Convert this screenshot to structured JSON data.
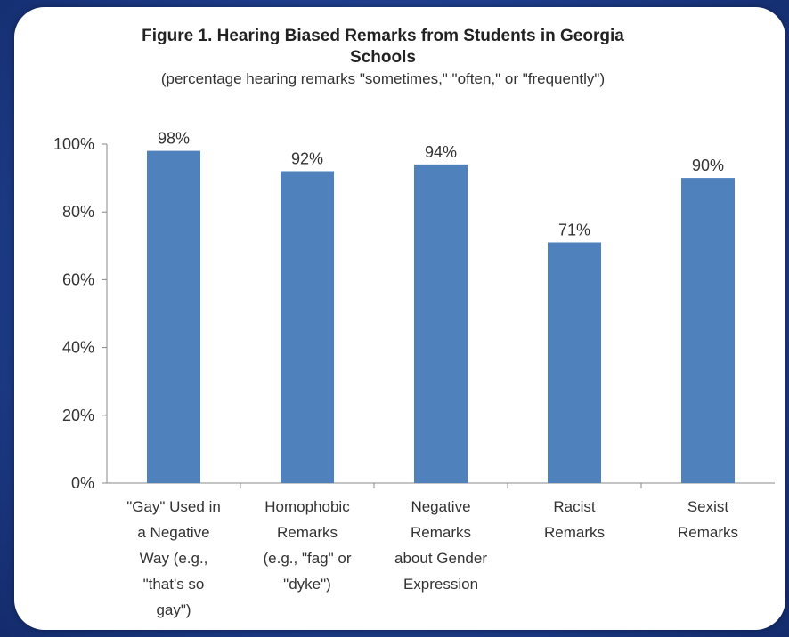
{
  "chart_data": {
    "type": "bar",
    "title": "Figure 1. Hearing Biased Remarks from Students in Georgia Schools",
    "subtitle": "(percentage hearing remarks \"sometimes,\" \"often,\" or \"frequently\")",
    "categories": [
      "\"Gay\" Used in a Negative Way (e.g., \"that's so gay\")",
      "Homophobic Remarks (e.g., \"fag\" or \"dyke\")",
      "Negative Remarks about Gender Expression",
      "Racist Remarks",
      "Sexist Remarks"
    ],
    "category_lines": [
      [
        "\"Gay\" Used in",
        "a Negative",
        "Way (e.g.,",
        "\"that's so",
        "gay\")"
      ],
      [
        "Homophobic",
        "Remarks",
        "(e.g., \"fag\" or",
        "\"dyke\")"
      ],
      [
        "Negative",
        "Remarks",
        "about Gender",
        "Expression"
      ],
      [
        "Racist",
        "Remarks"
      ],
      [
        "Sexist",
        "Remarks"
      ]
    ],
    "values": [
      98,
      92,
      94,
      71,
      90
    ],
    "data_labels": [
      "98%",
      "92%",
      "94%",
      "71%",
      "90%"
    ],
    "y_ticks": [
      0,
      20,
      40,
      60,
      80,
      100
    ],
    "y_tick_labels": [
      "0%",
      "20%",
      "40%",
      "60%",
      "80%",
      "100%"
    ],
    "ylim": [
      0,
      100
    ],
    "bar_color": "#4f81bd",
    "grid": false
  }
}
